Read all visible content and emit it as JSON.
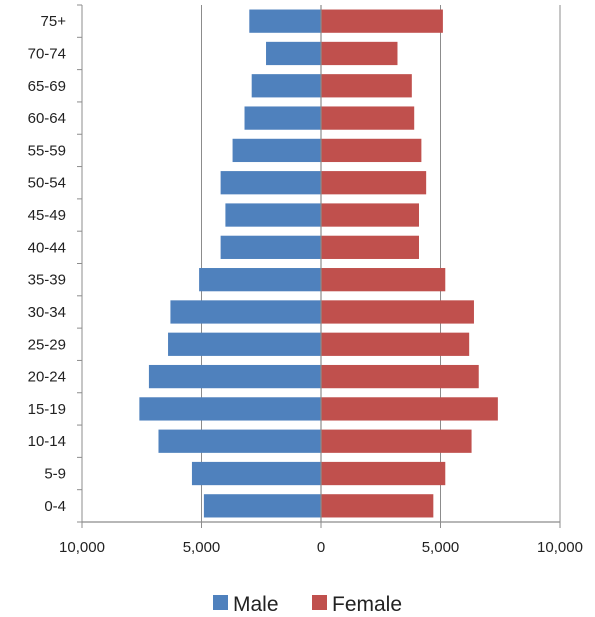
{
  "chart_data": {
    "type": "bar",
    "orientation": "horizontal",
    "subtype": "population-pyramid",
    "categories": [
      "0-4",
      "5-9",
      "10-14",
      "15-19",
      "20-24",
      "25-29",
      "30-34",
      "35-39",
      "40-44",
      "45-49",
      "50-54",
      "55-59",
      "60-64",
      "65-69",
      "70-74",
      "75+"
    ],
    "series": [
      {
        "name": "Male",
        "color": "#4f81bd",
        "values": [
          4900,
          5400,
          6800,
          7600,
          7200,
          6400,
          6300,
          5100,
          4200,
          4000,
          4200,
          3700,
          3200,
          2900,
          2300,
          3000
        ]
      },
      {
        "name": "Female",
        "color": "#c0504d",
        "values": [
          4700,
          5200,
          6300,
          7400,
          6600,
          6200,
          6400,
          5200,
          4100,
          4100,
          4400,
          4200,
          3900,
          3800,
          3200,
          5100
        ]
      }
    ],
    "x_tick_labels": [
      "10,000",
      "5,000",
      "0",
      "5,000",
      "10,000"
    ],
    "xlim": [
      -10000,
      10000
    ],
    "grid": "vertical",
    "legend": "bottom",
    "title": "",
    "xlabel": "",
    "ylabel": ""
  }
}
